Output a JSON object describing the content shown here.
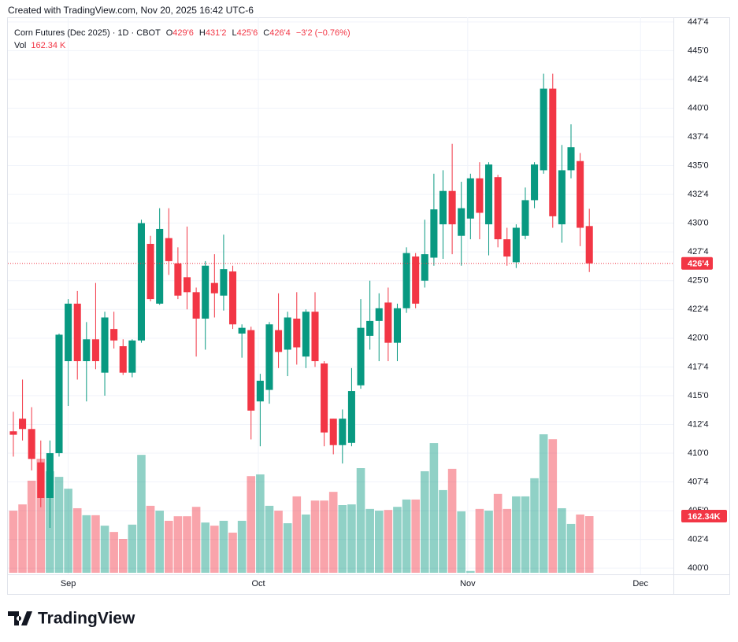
{
  "chart_data": {
    "type": "candlestick",
    "watermark": "Created with TradingView.com, Nov 20, 2025 16:42 UTC-6",
    "title": "Corn Futures (Dec 2025) · 1D · CBOT",
    "ohlc_legend": [
      {
        "key": "O",
        "value": 429.75,
        "label": "429'6"
      },
      {
        "key": "H",
        "value": 431.25,
        "label": "431'2"
      },
      {
        "key": "L",
        "value": 425.75,
        "label": "425'6"
      },
      {
        "key": "C",
        "value": 426.5,
        "label": "426'4"
      }
    ],
    "change": "−3'2 (−0.76%)",
    "up_color": "#089981",
    "down_color": "#f23645",
    "categories": [
      null,
      null,
      null,
      null,
      null,
      null,
      null,
      null,
      null,
      null,
      null,
      null,
      null,
      null,
      null,
      null,
      null,
      null,
      null,
      null,
      null,
      null,
      null,
      null,
      null,
      null,
      null,
      null,
      null,
      null,
      null,
      null,
      null,
      null,
      null,
      null,
      null,
      null,
      null,
      null,
      null,
      null,
      null,
      null,
      null,
      null,
      null,
      null,
      null,
      null,
      null,
      null,
      null,
      null,
      null,
      null,
      null,
      null,
      null,
      null,
      null,
      null,
      null,
      null
    ],
    "open": [
      411.9,
      413.0,
      412.1,
      409.2,
      406.1,
      410.0,
      418.0,
      423.0,
      418.0,
      419.9,
      417.0,
      420.8,
      419.3,
      417.0,
      419.8,
      428.2,
      423.0,
      428.7,
      426.5,
      425.3,
      424.0,
      421.7,
      424.8,
      423.7,
      425.8,
      420.4,
      420.7,
      414.5,
      415.5,
      420.7,
      419.0,
      421.7,
      418.4,
      422.3,
      417.8,
      413.0,
      410.7,
      410.9,
      415.9,
      420.2,
      421.5,
      423.1,
      419.6,
      422.6,
      427.1,
      425.0,
      427.0,
      429.9,
      432.8,
      428.9,
      430.4,
      433.9,
      429.9,
      434.0,
      428.6,
      426.6,
      428.9,
      432.0,
      434.6,
      441.7,
      429.9,
      434.6,
      435.4,
      429.75
    ],
    "high": [
      413.6,
      416.4,
      414.0,
      411.1,
      411.1,
      420.4,
      423.4,
      424.1,
      421.4,
      424.8,
      422.3,
      422.3,
      419.9,
      419.9,
      430.3,
      428.9,
      431.3,
      431.3,
      427.9,
      429.7,
      424.4,
      426.7,
      427.3,
      429.0,
      426.3,
      421.2,
      421.0,
      416.9,
      421.4,
      423.9,
      422.3,
      424.0,
      422.5,
      424.0,
      418.0,
      413.0,
      413.8,
      417.4,
      423.4,
      425.0,
      423.9,
      424.4,
      423.0,
      427.9,
      427.4,
      430.3,
      434.3,
      434.6,
      436.9,
      433.6,
      434.3,
      435.3,
      435.3,
      434.2,
      429.6,
      429.9,
      433.1,
      435.3,
      443.0,
      443.0,
      436.8,
      438.6,
      436.1,
      431.25
    ],
    "low": [
      409.7,
      411.1,
      408.5,
      405.3,
      403.5,
      409.7,
      414.1,
      416.4,
      414.5,
      417.3,
      415.0,
      419.1,
      416.8,
      416.6,
      419.6,
      423.2,
      422.9,
      425.5,
      423.4,
      422.5,
      418.4,
      419.0,
      421.8,
      422.4,
      420.8,
      418.3,
      411.2,
      410.6,
      414.3,
      417.4,
      416.7,
      417.7,
      417.4,
      417.5,
      410.6,
      409.9,
      409.1,
      410.6,
      415.6,
      419.0,
      418.0,
      418.0,
      418.0,
      422.2,
      422.6,
      424.4,
      426.3,
      426.9,
      427.3,
      426.3,
      428.6,
      428.6,
      427.2,
      427.9,
      426.3,
      426.1,
      428.6,
      431.3,
      434.3,
      429.6,
      428.3,
      433.9,
      428.0,
      425.75
    ],
    "close": [
      411.6,
      412.1,
      409.5,
      406.1,
      410.0,
      420.3,
      423.0,
      418.0,
      419.9,
      418.0,
      421.8,
      419.8,
      417.0,
      419.8,
      430.0,
      423.4,
      429.5,
      426.7,
      423.7,
      424.0,
      421.7,
      426.3,
      423.9,
      426.0,
      421.2,
      420.9,
      413.7,
      416.3,
      421.2,
      418.8,
      421.8,
      419.2,
      422.3,
      418.0,
      411.8,
      410.7,
      413.0,
      415.4,
      420.9,
      421.5,
      422.6,
      419.6,
      422.6,
      427.4,
      423.0,
      427.3,
      431.2,
      432.8,
      429.9,
      431.3,
      433.9,
      430.9,
      435.1,
      428.6,
      427.1,
      429.6,
      432.0,
      435.1,
      441.7,
      430.6,
      434.6,
      436.6,
      429.6,
      426.5
    ],
    "volume": {
      "name": "Vol",
      "values": [
        178,
        196,
        264,
        327,
        291,
        275,
        241,
        185,
        165,
        165,
        135,
        117,
        97,
        138,
        338,
        192,
        178,
        149,
        162,
        162,
        189,
        144,
        135,
        149,
        115,
        149,
        277,
        282,
        192,
        178,
        142,
        219,
        167,
        207,
        207,
        232,
        194,
        196,
        300,
        183,
        178,
        180,
        189,
        210,
        210,
        291,
        372,
        237,
        298,
        176,
        5,
        183,
        178,
        226,
        183,
        219,
        219,
        271,
        397,
        383,
        185,
        140,
        167,
        162.34
      ],
      "legend_label": "162.34 K",
      "tag_label": "162.34K"
    },
    "last_price": {
      "value": 426.5,
      "label": "426'4"
    },
    "xlim": [
      -0.6,
      72.2
    ],
    "xticks": [
      {
        "value": 6,
        "label": "Sep"
      },
      {
        "value": 26.8,
        "label": "Oct"
      },
      {
        "value": 49.7,
        "label": "Nov"
      },
      {
        "value": 68.6,
        "label": "Dec"
      }
    ],
    "ylim": [
      399.6,
      447.9
    ],
    "yticks": [
      {
        "value": 400,
        "label": "400'0"
      },
      {
        "value": 402.5,
        "label": "402'4"
      },
      {
        "value": 405,
        "label": "405'0"
      },
      {
        "value": 407.5,
        "label": "407'4"
      },
      {
        "value": 410,
        "label": "410'0"
      },
      {
        "value": 412.5,
        "label": "412'4"
      },
      {
        "value": 415,
        "label": "415'0"
      },
      {
        "value": 417.5,
        "label": "417'4"
      },
      {
        "value": 420,
        "label": "420'0"
      },
      {
        "value": 422.5,
        "label": "422'4"
      },
      {
        "value": 425,
        "label": "425'0"
      },
      {
        "value": 427.5,
        "label": "427'4"
      },
      {
        "value": 430,
        "label": "430'0"
      },
      {
        "value": 432.5,
        "label": "432'4"
      },
      {
        "value": 435,
        "label": "435'0"
      },
      {
        "value": 437.5,
        "label": "437'4"
      },
      {
        "value": 440,
        "label": "440'0"
      },
      {
        "value": 442.5,
        "label": "442'4"
      },
      {
        "value": 445,
        "label": "445'0"
      },
      {
        "value": 447.5,
        "label": "447'4"
      }
    ],
    "grid": true,
    "brand": "TradingView"
  }
}
